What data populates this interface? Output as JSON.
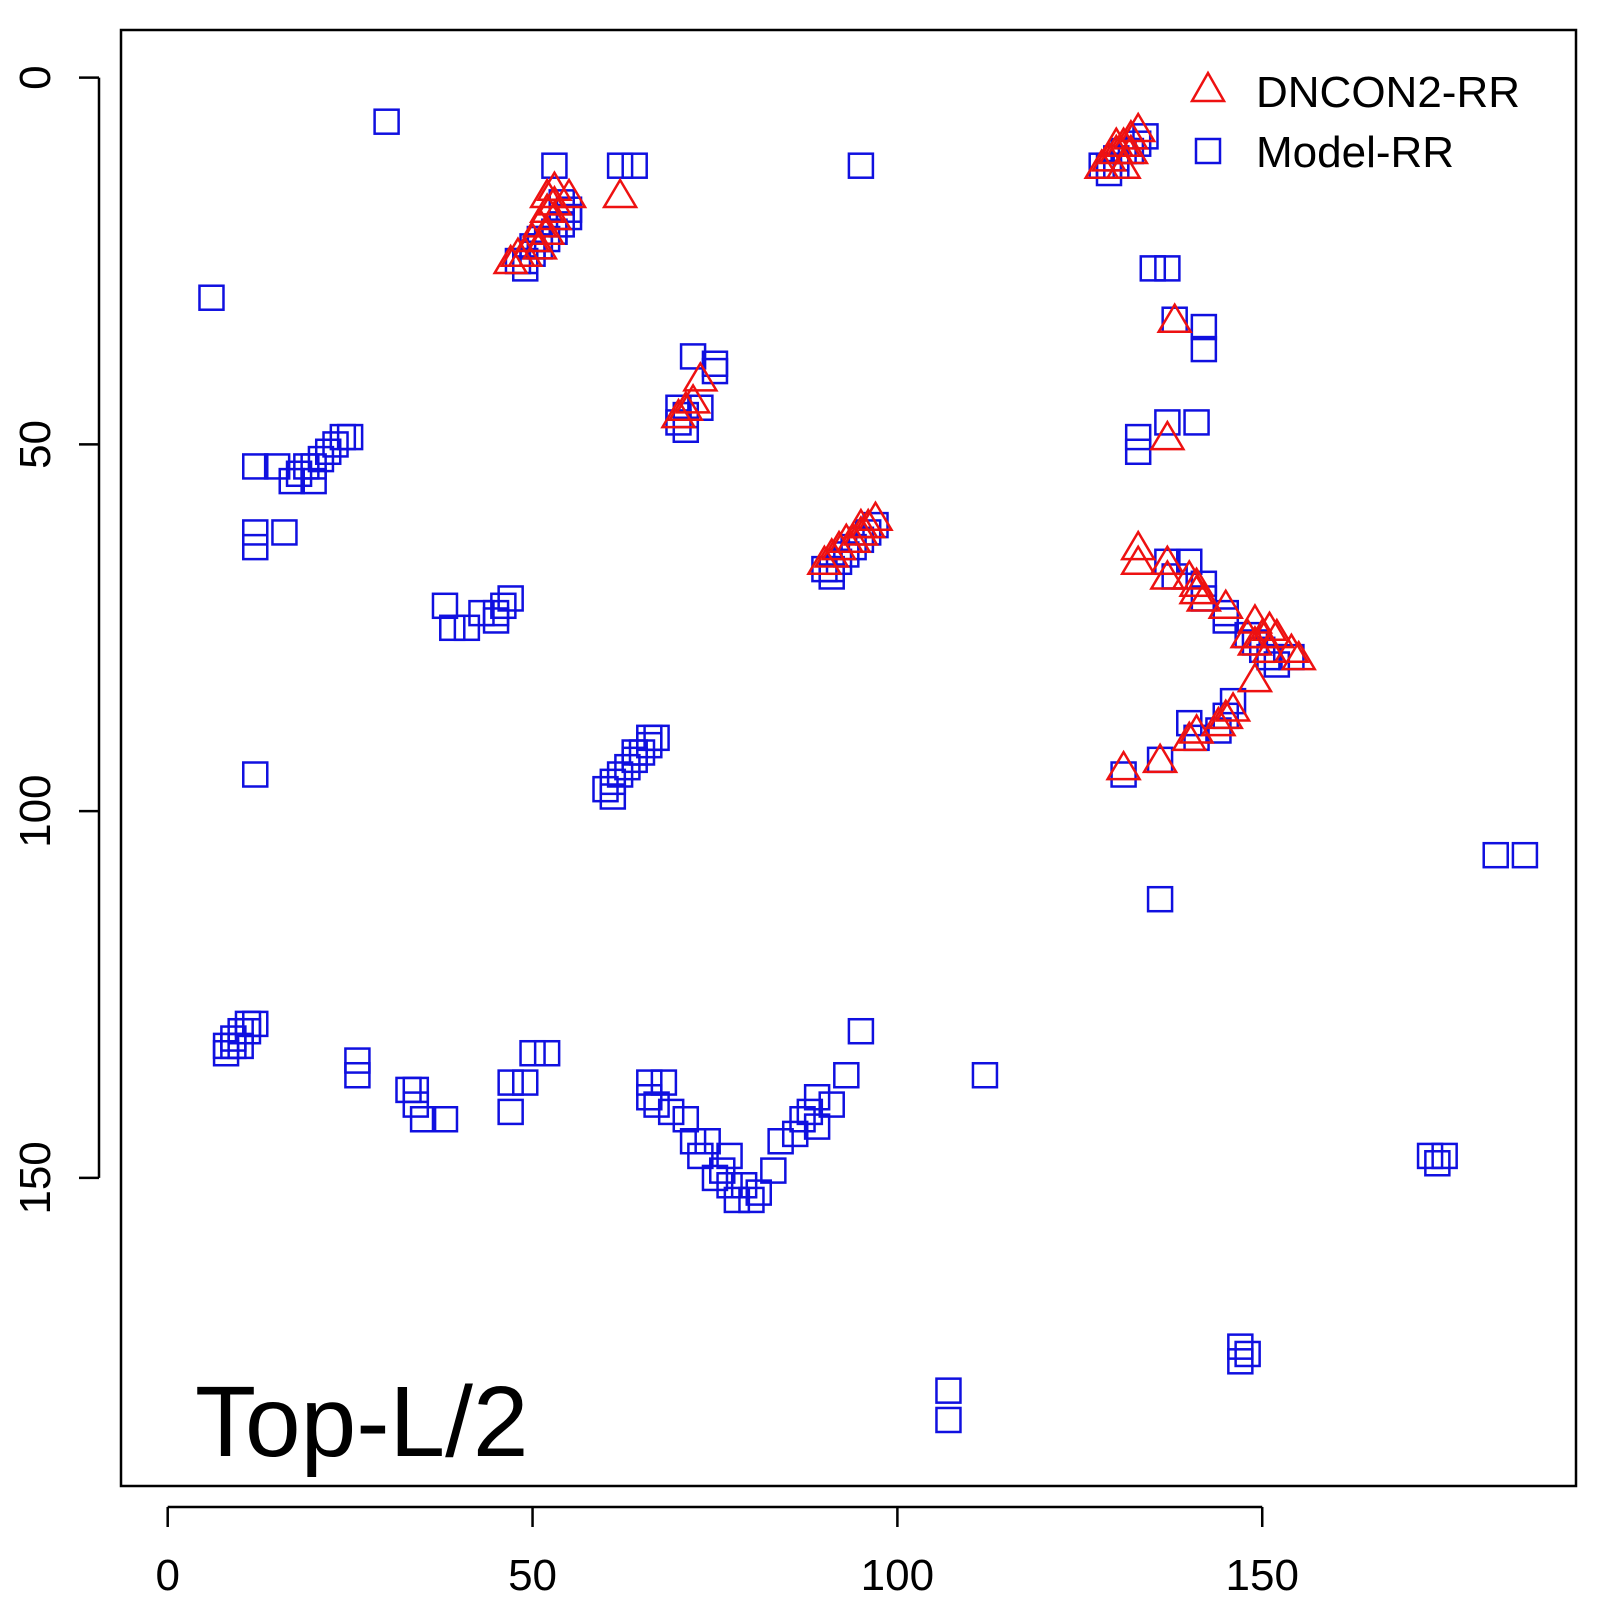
{
  "chart_data": {
    "type": "scatter",
    "annotation": "Top-L/2",
    "xlim": [
      -6.4,
      193
    ],
    "ylim": [
      -6.5,
      192
    ],
    "y_axis_reversed": true,
    "x_ticks": [
      0,
      50,
      100,
      150
    ],
    "y_ticks": [
      0,
      50,
      100,
      150
    ],
    "legend_position": "top-right",
    "series": [
      {
        "name": "DNCON2-RR",
        "marker": "triangle",
        "color": "#ee1111",
        "points": [
          [
            133,
            7
          ],
          [
            132,
            8
          ],
          [
            131,
            9
          ],
          [
            130,
            10
          ],
          [
            129,
            11
          ],
          [
            128,
            12
          ],
          [
            131,
            12
          ],
          [
            132,
            10
          ],
          [
            130,
            9
          ],
          [
            53,
            15
          ],
          [
            55,
            16
          ],
          [
            52,
            16
          ],
          [
            53,
            17
          ],
          [
            52,
            18
          ],
          [
            53,
            19
          ],
          [
            51,
            20
          ],
          [
            52,
            21
          ],
          [
            50,
            22
          ],
          [
            51,
            23
          ],
          [
            49,
            24
          ],
          [
            48,
            24
          ],
          [
            47,
            25
          ],
          [
            62,
            16
          ],
          [
            138,
            33
          ],
          [
            73,
            41
          ],
          [
            72,
            44
          ],
          [
            71,
            45
          ],
          [
            70,
            46
          ],
          [
            137,
            49
          ],
          [
            97,
            60
          ],
          [
            96,
            61
          ],
          [
            95,
            61
          ],
          [
            95,
            62
          ],
          [
            94,
            63
          ],
          [
            93,
            63
          ],
          [
            92,
            64
          ],
          [
            91,
            65
          ],
          [
            90,
            66
          ],
          [
            133,
            64
          ],
          [
            133,
            66
          ],
          [
            137,
            66
          ],
          [
            137,
            68
          ],
          [
            140,
            68
          ],
          [
            141,
            69
          ],
          [
            141,
            70
          ],
          [
            142,
            71
          ],
          [
            145,
            72
          ],
          [
            149,
            74
          ],
          [
            151,
            75
          ],
          [
            148,
            76
          ],
          [
            150,
            76
          ],
          [
            152,
            76
          ],
          [
            149,
            77
          ],
          [
            151,
            78
          ],
          [
            154,
            78
          ],
          [
            155,
            79
          ],
          [
            149,
            82
          ],
          [
            146,
            86
          ],
          [
            145,
            87
          ],
          [
            144,
            88
          ],
          [
            141,
            89
          ],
          [
            140,
            90
          ],
          [
            136,
            93
          ],
          [
            131,
            94
          ]
        ]
      },
      {
        "name": "Model-RR",
        "marker": "square",
        "color": "#1010e0",
        "points": [
          [
            30,
            6
          ],
          [
            95,
            12
          ],
          [
            53,
            12
          ],
          [
            62,
            12
          ],
          [
            64,
            12
          ],
          [
            134,
            8
          ],
          [
            133,
            9
          ],
          [
            132,
            10
          ],
          [
            131,
            10
          ],
          [
            130,
            11
          ],
          [
            129,
            12
          ],
          [
            128,
            12
          ],
          [
            130,
            12
          ],
          [
            129,
            13
          ],
          [
            54,
            17
          ],
          [
            55,
            18
          ],
          [
            55,
            19
          ],
          [
            54,
            20
          ],
          [
            53,
            21
          ],
          [
            52,
            22
          ],
          [
            51,
            23
          ],
          [
            50,
            24
          ],
          [
            49,
            25
          ],
          [
            48,
            25
          ],
          [
            49,
            26
          ],
          [
            53,
            21
          ],
          [
            51,
            22
          ],
          [
            50,
            23
          ],
          [
            135,
            26
          ],
          [
            137,
            26
          ],
          [
            6,
            30
          ],
          [
            138,
            33
          ],
          [
            142,
            34
          ],
          [
            142,
            37
          ],
          [
            72,
            38
          ],
          [
            75,
            39
          ],
          [
            75,
            40
          ],
          [
            70,
            45
          ],
          [
            71,
            46
          ],
          [
            73,
            45
          ],
          [
            70,
            47
          ],
          [
            71,
            48
          ],
          [
            137,
            47
          ],
          [
            141,
            47
          ],
          [
            133,
            49
          ],
          [
            133,
            51
          ],
          [
            24,
            49
          ],
          [
            25,
            49
          ],
          [
            23,
            50
          ],
          [
            22,
            51
          ],
          [
            21,
            52
          ],
          [
            20,
            53
          ],
          [
            19,
            53
          ],
          [
            18,
            54
          ],
          [
            17,
            55
          ],
          [
            20,
            55
          ],
          [
            12,
            53
          ],
          [
            15,
            53
          ],
          [
            12,
            62
          ],
          [
            12,
            64
          ],
          [
            16,
            62
          ],
          [
            97,
            61
          ],
          [
            96,
            62
          ],
          [
            95,
            63
          ],
          [
            94,
            64
          ],
          [
            93,
            65
          ],
          [
            92,
            66
          ],
          [
            91,
            67
          ],
          [
            90,
            67
          ],
          [
            91,
            68
          ],
          [
            137,
            66
          ],
          [
            138,
            68
          ],
          [
            140,
            66
          ],
          [
            142,
            69
          ],
          [
            142,
            71
          ],
          [
            145,
            73
          ],
          [
            145,
            74
          ],
          [
            148,
            76
          ],
          [
            149,
            77
          ],
          [
            150,
            78
          ],
          [
            151,
            79
          ],
          [
            152,
            80
          ],
          [
            154,
            79
          ],
          [
            47,
            71
          ],
          [
            46,
            72
          ],
          [
            45,
            73
          ],
          [
            45,
            74
          ],
          [
            38,
            72
          ],
          [
            43,
            73
          ],
          [
            39,
            75
          ],
          [
            41,
            75
          ],
          [
            146,
            85
          ],
          [
            145,
            87
          ],
          [
            144,
            89
          ],
          [
            140,
            88
          ],
          [
            141,
            90
          ],
          [
            136,
            93
          ],
          [
            131,
            95
          ],
          [
            67,
            90
          ],
          [
            66,
            91
          ],
          [
            65,
            92
          ],
          [
            64,
            93
          ],
          [
            63,
            94
          ],
          [
            62,
            95
          ],
          [
            61,
            96
          ],
          [
            60,
            97
          ],
          [
            61,
            98
          ],
          [
            66,
            90
          ],
          [
            64,
            92
          ],
          [
            12,
            95
          ],
          [
            182,
            106
          ],
          [
            186,
            106
          ],
          [
            136,
            112
          ],
          [
            12,
            129
          ],
          [
            11,
            129
          ],
          [
            10,
            130
          ],
          [
            9,
            131
          ],
          [
            8,
            132
          ],
          [
            10,
            132
          ],
          [
            8,
            133
          ],
          [
            11,
            130
          ],
          [
            9,
            132
          ],
          [
            26,
            134
          ],
          [
            26,
            136
          ],
          [
            34,
            138
          ],
          [
            33,
            138
          ],
          [
            34,
            140
          ],
          [
            35,
            142
          ],
          [
            38,
            142
          ],
          [
            50,
            133
          ],
          [
            52,
            133
          ],
          [
            47,
            137
          ],
          [
            49,
            137
          ],
          [
            47,
            141
          ],
          [
            95,
            130
          ],
          [
            93,
            136
          ],
          [
            112,
            136
          ],
          [
            66,
            137
          ],
          [
            68,
            137
          ],
          [
            66,
            139
          ],
          [
            67,
            140
          ],
          [
            69,
            141
          ],
          [
            71,
            142
          ],
          [
            89,
            139
          ],
          [
            91,
            140
          ],
          [
            88,
            141
          ],
          [
            87,
            142
          ],
          [
            89,
            143
          ],
          [
            86,
            144
          ],
          [
            84,
            145
          ],
          [
            72,
            145
          ],
          [
            74,
            145
          ],
          [
            73,
            147
          ],
          [
            77,
            147
          ],
          [
            76,
            149
          ],
          [
            75,
            150
          ],
          [
            77,
            151
          ],
          [
            79,
            151
          ],
          [
            78,
            153
          ],
          [
            80,
            153
          ],
          [
            81,
            152
          ],
          [
            83,
            149
          ],
          [
            173,
            147
          ],
          [
            175,
            147
          ],
          [
            174,
            148
          ],
          [
            147,
            173
          ],
          [
            148,
            174
          ],
          [
            147,
            175
          ],
          [
            107,
            179
          ],
          [
            107,
            183
          ]
        ]
      }
    ]
  }
}
